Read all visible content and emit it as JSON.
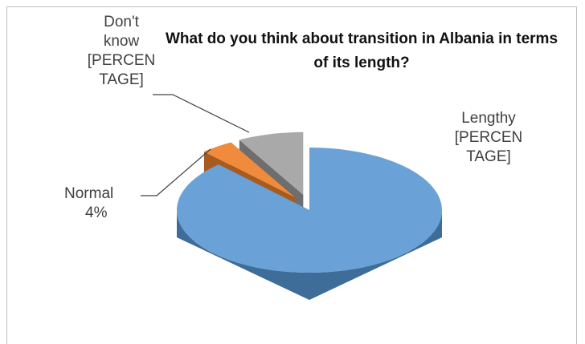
{
  "chart_data": {
    "type": "pie3d",
    "title": "What do you think about transition in Albania in terms of its length?",
    "categories": [
      "Lengthy",
      "Normal",
      "Don't know"
    ],
    "values": [
      88,
      4,
      8
    ],
    "value_labels": [
      "[PERCENTAGE]",
      "4%",
      "[PERCENTAGE]"
    ],
    "colors": [
      "#6aa2d8",
      "#f08a3c",
      "#a9a9a9"
    ],
    "side_colors": [
      "#3d6d98",
      "#a65b1f",
      "#6e6e6e"
    ],
    "exploded": [
      false,
      true,
      true
    ]
  }
}
